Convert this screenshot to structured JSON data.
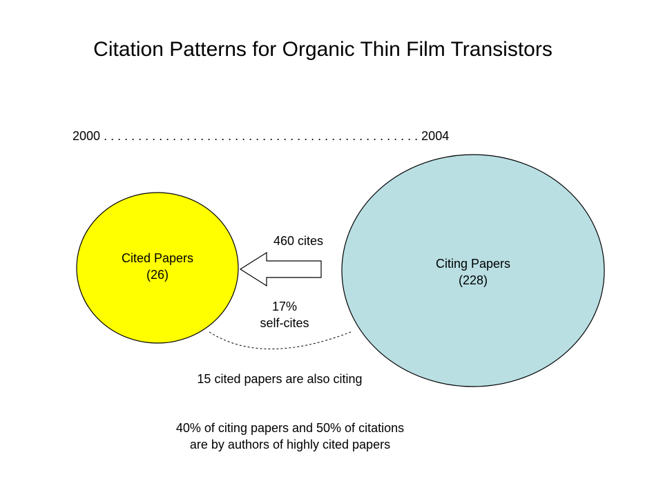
{
  "title": "Citation Patterns for Organic Thin Film Transistors",
  "timeline": {
    "start": "2000",
    "dots": ". . . . . . . . . . . . . . . . . . . . . . . . . . . . . . . . . . . . . . . . . . . . . .",
    "end": "2004"
  },
  "cited": {
    "label": "Cited Papers",
    "count": "(26)",
    "color": "#ffff00"
  },
  "citing": {
    "label": "Citing Papers",
    "count": "(228)",
    "color": "#b9dfe3"
  },
  "arrow": {
    "top_label": "460 cites",
    "bottom_label_line1": "17%",
    "bottom_label_line2": "self-cites"
  },
  "overlap_note": "15 cited papers are also citing",
  "footer": {
    "line1": "40% of citing papers and 50% of citations",
    "line2": "are by authors of highly cited papers"
  }
}
